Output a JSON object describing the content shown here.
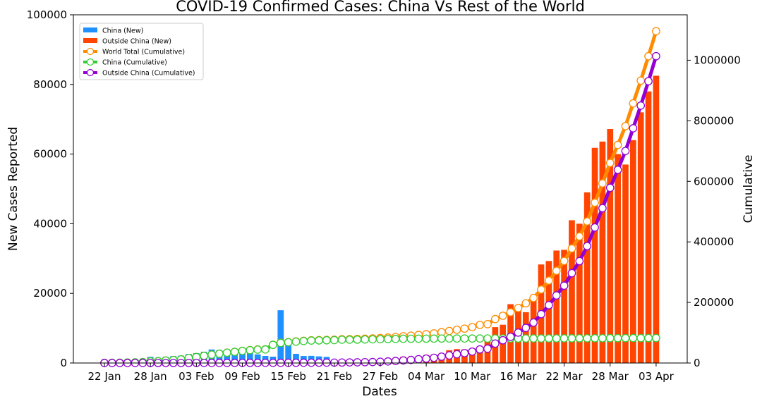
{
  "chart_data": {
    "type": "bar",
    "title": "COVID-19 Confirmed Cases: China Vs Rest of the World",
    "xlabel": "Dates",
    "ylabel": "New Cases Reported",
    "y2label": "Cumulative",
    "x_ticks": [
      "22 Jan",
      "28 Jan",
      "03 Feb",
      "09 Feb",
      "15 Feb",
      "21 Feb",
      "27 Feb",
      "04 Mar",
      "10 Mar",
      "16 Mar",
      "22 Mar",
      "28 Mar",
      "03 Apr"
    ],
    "y_ticks": [
      "0",
      "20000",
      "40000",
      "60000",
      "80000",
      "100000"
    ],
    "y2_ticks": [
      "0",
      "200000",
      "400000",
      "600000",
      "800000",
      "1000000"
    ],
    "ylim": [
      0,
      100000
    ],
    "y2lim": [
      0,
      1150000
    ],
    "x": [
      "22 Jan",
      "23 Jan",
      "24 Jan",
      "25 Jan",
      "26 Jan",
      "27 Jan",
      "28 Jan",
      "29 Jan",
      "30 Jan",
      "31 Jan",
      "01 Feb",
      "02 Feb",
      "03 Feb",
      "04 Feb",
      "05 Feb",
      "06 Feb",
      "07 Feb",
      "08 Feb",
      "09 Feb",
      "10 Feb",
      "11 Feb",
      "12 Feb",
      "13 Feb",
      "14 Feb",
      "15 Feb",
      "16 Feb",
      "17 Feb",
      "18 Feb",
      "19 Feb",
      "20 Feb",
      "21 Feb",
      "22 Feb",
      "23 Feb",
      "24 Feb",
      "25 Feb",
      "26 Feb",
      "27 Feb",
      "28 Feb",
      "29 Feb",
      "01 Mar",
      "02 Mar",
      "03 Mar",
      "04 Mar",
      "05 Mar",
      "06 Mar",
      "07 Mar",
      "08 Mar",
      "09 Mar",
      "10 Mar",
      "11 Mar",
      "12 Mar",
      "13 Mar",
      "14 Mar",
      "15 Mar",
      "16 Mar",
      "17 Mar",
      "18 Mar",
      "19 Mar",
      "20 Mar",
      "21 Mar",
      "22 Mar",
      "23 Mar",
      "24 Mar",
      "25 Mar",
      "26 Mar",
      "27 Mar",
      "28 Mar",
      "29 Mar",
      "30 Mar",
      "31 Mar",
      "01 Apr",
      "02 Apr",
      "03 Apr"
    ],
    "series": [
      {
        "name": "China (New)",
        "type": "bar",
        "color": "#1e90ff",
        "axis": "left",
        "values": [
          0,
          100,
          260,
          450,
          690,
          780,
          1760,
          1460,
          1740,
          1980,
          2100,
          2590,
          2830,
          3240,
          3880,
          3700,
          3160,
          3400,
          2660,
          3000,
          2480,
          2020,
          1820,
          15150,
          5090,
          2640,
          2010,
          2050,
          1900,
          1750,
          400,
          890,
          650,
          410,
          200,
          410,
          440,
          330,
          430,
          580,
          200,
          120,
          120,
          140,
          100,
          70,
          40,
          50,
          20,
          30,
          20,
          10,
          10,
          20,
          20,
          30,
          20,
          40,
          40,
          40,
          50,
          80,
          100,
          70,
          60,
          60,
          60,
          50,
          50,
          40,
          40,
          50,
          40
        ]
      },
      {
        "name": "Outside China (New)",
        "type": "bar",
        "color": "#ff4500",
        "axis": "left",
        "values": [
          0,
          0,
          10,
          10,
          10,
          10,
          20,
          10,
          20,
          20,
          30,
          40,
          30,
          30,
          60,
          40,
          20,
          50,
          40,
          60,
          30,
          60,
          60,
          50,
          40,
          60,
          50,
          40,
          70,
          80,
          140,
          120,
          240,
          400,
          230,
          460,
          760,
          1030,
          1460,
          1780,
          1790,
          2020,
          2300,
          2140,
          2700,
          3670,
          4000,
          3900,
          3900,
          4700,
          6400,
          10300,
          11000,
          16900,
          16400,
          14600,
          18700,
          28300,
          29300,
          32300,
          32500,
          41000,
          40000,
          49000,
          61800,
          63600,
          67200,
          60000,
          57000,
          64000,
          72000,
          78000,
          82500
        ]
      },
      {
        "name": "World Total (Cumulative)",
        "type": "line",
        "color": "#ff8c00",
        "axis": "right",
        "values": [
          555,
          655,
          941,
          1434,
          2118,
          2927,
          5578,
          6166,
          8234,
          9927,
          12038,
          16787,
          19881,
          23892,
          27635,
          30817,
          34391,
          37120,
          40150,
          42762,
          44802,
          45221,
          60368,
          66885,
          69030,
          71224,
          73258,
          75136,
          75639,
          76197,
          76819,
          78572,
          78958,
          79561,
          80406,
          81388,
          82746,
          84112,
          86011,
          88369,
          90306,
          92840,
          95120,
          97886,
          101800,
          105847,
          109821,
          113590,
          118620,
          125875,
          128352,
          145205,
          156101,
          167454,
          181574,
          197102,
          214821,
          242570,
          272208,
          304507,
          336953,
          378235,
          418045,
          467653,
          529591,
          593291,
          660706,
          720117,
          782365,
          857487,
          932605,
          1013157,
          1095917
        ]
      },
      {
        "name": "China (Cumulative)",
        "type": "line",
        "color": "#32cd32",
        "axis": "right",
        "values": [
          548,
          643,
          920,
          1406,
          2075,
          2877,
          5509,
          6087,
          8141,
          9802,
          11891,
          16630,
          19716,
          23707,
          27440,
          30587,
          34110,
          36814,
          39829,
          42354,
          44386,
          44759,
          59895,
          66358,
          68413,
          70513,
          72434,
          74211,
          74619,
          75077,
          75550,
          77001,
          77022,
          77241,
          77754,
          78166,
          78600,
          78928,
          79356,
          79932,
          80136,
          80261,
          80386,
          80537,
          80690,
          80770,
          80823,
          80860,
          80887,
          80921,
          80932,
          80945,
          80977,
          81003,
          81033,
          81058,
          81102,
          81156,
          81250,
          81305,
          81435,
          81498,
          81591,
          81661,
          81782,
          81897,
          81999,
          82122,
          82198,
          82279,
          82361,
          82432,
          82511
        ]
      },
      {
        "name": "Outside China (Cumulative)",
        "type": "line",
        "color": "#9400d3",
        "axis": "right",
        "values": [
          7,
          12,
          21,
          28,
          43,
          50,
          69,
          79,
          93,
          125,
          147,
          157,
          165,
          185,
          195,
          230,
          281,
          306,
          321,
          408,
          416,
          462,
          473,
          527,
          617,
          711,
          824,
          925,
          1020,
          1120,
          1269,
          1571,
          1936,
          2320,
          2652,
          3222,
          4146,
          5184,
          6655,
          8437,
          10170,
          12579,
          14734,
          17349,
          21110,
          25077,
          28998,
          32730,
          37733,
          44954,
          47420,
          64260,
          75124,
          86451,
          100541,
          116044,
          133719,
          161414,
          190958,
          223202,
          255518,
          296737,
          336454,
          385992,
          447809,
          511394,
          578707,
          637995,
          700167,
          775208,
          850244,
          930725,
          1013406
        ]
      }
    ],
    "legend": {
      "placement": "top-left",
      "entries": [
        "China (New)",
        "Outside China (New)",
        "World Total (Cumulative)",
        "China (Cumulative)",
        "Outside China (Cumulative)"
      ]
    },
    "grid": false
  }
}
